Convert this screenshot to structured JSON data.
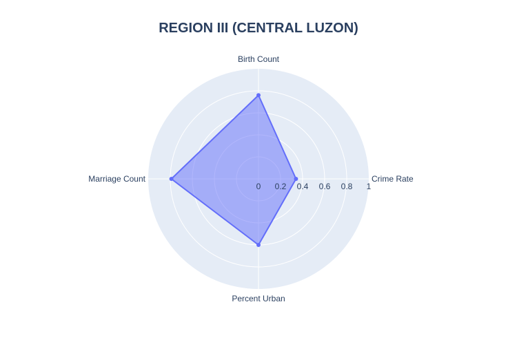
{
  "chart_data": {
    "type": "radar",
    "title": "REGION III (CENTRAL LUZON)",
    "categories": [
      "Crime Rate",
      "Birth Count",
      "Marriage Count",
      "Percent Urban"
    ],
    "series": [
      {
        "name": "REGION III (CENTRAL LUZON)",
        "values": [
          0.34,
          0.76,
          0.79,
          0.6
        ]
      }
    ],
    "radial_range": [
      0,
      1
    ],
    "radial_ticks": [
      "0",
      "0.2",
      "0.4",
      "0.6",
      "0.8",
      "1"
    ],
    "radial_tick_values": [
      0,
      0.2,
      0.4,
      0.6,
      0.8,
      1
    ],
    "grid": true,
    "colors": {
      "polar_background": "#e5ecf6",
      "grid": "#ffffff",
      "series_line": "#636efa",
      "series_fill": "#636efa",
      "text": "#2a3f5f"
    }
  }
}
